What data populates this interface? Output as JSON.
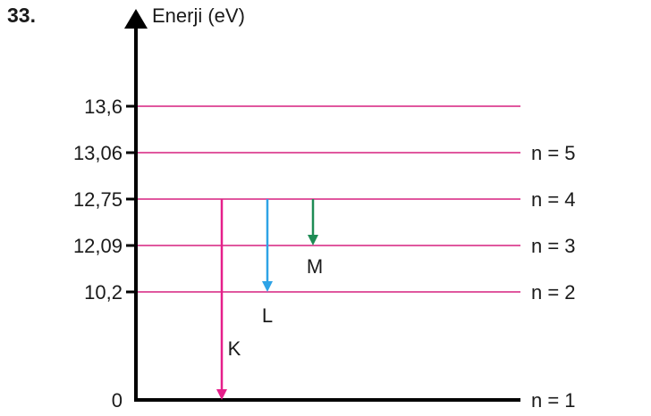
{
  "question_number": "33.",
  "y_axis_label": "Enerji (eV)",
  "colors": {
    "axis": "#000000",
    "level_line": "#e0589f",
    "arrow_K": "#e51f8a",
    "arrow_L": "#2ea3e6",
    "arrow_M": "#1e8c55",
    "text": "#1a1a1a"
  },
  "levels": [
    {
      "energy": 0,
      "energy_label": "0",
      "n_label": "n = 1"
    },
    {
      "energy": 10.2,
      "energy_label": "10,2",
      "n_label": "n = 2"
    },
    {
      "energy": 12.09,
      "energy_label": "12,09",
      "n_label": "n = 3"
    },
    {
      "energy": 12.75,
      "energy_label": "12,75",
      "n_label": "n = 4"
    },
    {
      "energy": 13.06,
      "energy_label": "13,06",
      "n_label": "n = 5"
    },
    {
      "energy": 13.6,
      "energy_label": "13,6",
      "n_label": ""
    }
  ],
  "transitions": [
    {
      "label": "K",
      "from_energy": 12.75,
      "to_energy": 0,
      "color": "#e51f8a"
    },
    {
      "label": "L",
      "from_energy": 12.75,
      "to_energy": 10.2,
      "color": "#2ea3e6"
    },
    {
      "label": "M",
      "from_energy": 12.75,
      "to_energy": 12.09,
      "color": "#1e8c55"
    }
  ]
}
